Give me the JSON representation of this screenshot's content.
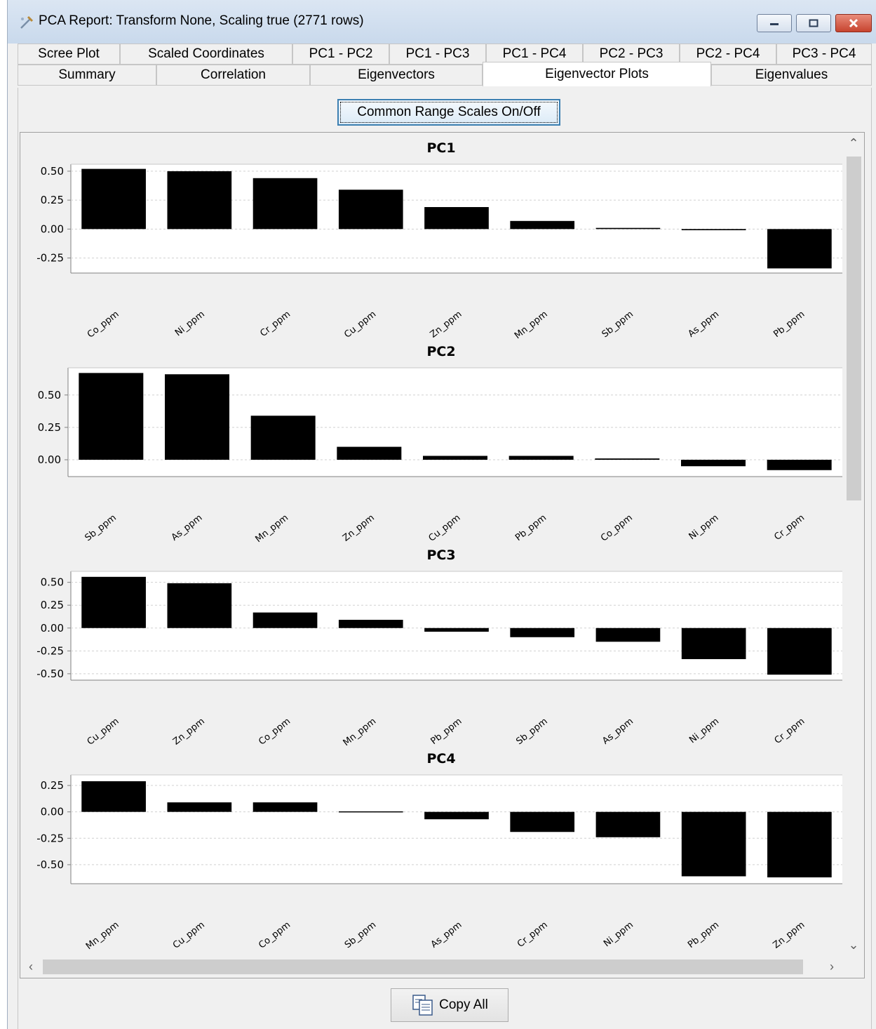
{
  "window": {
    "title": "PCA Report: Transform None, Scaling true (2771 rows)"
  },
  "tabs_row1": [
    "Scree Plot",
    "Scaled Coordinates",
    "PC1 - PC2",
    "PC1 - PC3",
    "PC1 - PC4",
    "PC2 - PC3",
    "PC2 - PC4",
    "PC3 - PC4"
  ],
  "tabs_row2": [
    "Summary",
    "Correlation",
    "Eigenvectors",
    "Eigenvector Plots",
    "Eigenvalues"
  ],
  "active_tab": "Eigenvector Plots",
  "toolbar": {
    "toggle_label": "Common Range Scales On/Off"
  },
  "footer": {
    "copy_label": "Copy All"
  },
  "chart_data": [
    {
      "type": "bar",
      "title": "PC1",
      "categories": [
        "Co_ppm",
        "Ni_ppm",
        "Cr_ppm",
        "Cu_ppm",
        "Zn_ppm",
        "Mn_ppm",
        "Sb_ppm",
        "As_ppm",
        "Pb_ppm"
      ],
      "values": [
        0.52,
        0.5,
        0.44,
        0.34,
        0.19,
        0.07,
        0.01,
        -0.01,
        -0.34
      ],
      "yticks": [
        "0.50",
        "0.25",
        "0.00",
        "-0.25"
      ],
      "ylim": [
        -0.38,
        0.56
      ],
      "grid": true
    },
    {
      "type": "bar",
      "title": "PC2",
      "categories": [
        "Sb_ppm",
        "As_ppm",
        "Mn_ppm",
        "Zn_ppm",
        "Cu_ppm",
        "Pb_ppm",
        "Co_ppm",
        "Ni_ppm",
        "Cr_ppm"
      ],
      "values": [
        0.67,
        0.66,
        0.34,
        0.1,
        0.03,
        0.03,
        0.01,
        -0.05,
        -0.08
      ],
      "yticks": [
        "0.50",
        "0.25",
        "0.00"
      ],
      "ylim": [
        -0.13,
        0.71
      ],
      "grid": true
    },
    {
      "type": "bar",
      "title": "PC3",
      "categories": [
        "Cu_ppm",
        "Zn_ppm",
        "Co_ppm",
        "Mn_ppm",
        "Pb_ppm",
        "Sb_ppm",
        "As_ppm",
        "Ni_ppm",
        "Cr_ppm"
      ],
      "values": [
        0.56,
        0.49,
        0.17,
        0.09,
        -0.04,
        -0.1,
        -0.15,
        -0.34,
        -0.51
      ],
      "yticks": [
        "0.50",
        "0.25",
        "0.00",
        "-0.25",
        "-0.50"
      ],
      "ylim": [
        -0.57,
        0.62
      ],
      "grid": true
    },
    {
      "type": "bar",
      "title": "PC4",
      "categories": [
        "Mn_ppm",
        "Cu_ppm",
        "Co_ppm",
        "Sb_ppm",
        "As_ppm",
        "Cr_ppm",
        "Ni_ppm",
        "Pb_ppm",
        "Zn_ppm"
      ],
      "values": [
        0.29,
        0.09,
        0.09,
        0.0,
        -0.07,
        -0.19,
        -0.24,
        -0.61,
        -0.62
      ],
      "yticks": [
        "0.25",
        "0.00",
        "-0.25",
        "-0.50"
      ],
      "ylim": [
        -0.68,
        0.35
      ],
      "grid": true
    }
  ]
}
